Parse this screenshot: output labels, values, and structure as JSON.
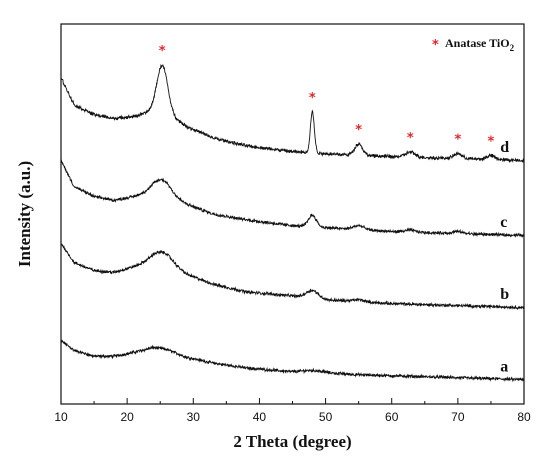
{
  "chart_data": {
    "type": "line",
    "xlabel": "2 Theta (degree)",
    "ylabel": "Intensity (a.u.)",
    "xlim": [
      10,
      80
    ],
    "x_ticks": [
      10,
      20,
      30,
      40,
      50,
      60,
      70,
      80
    ],
    "x_tick_labels": [
      "10",
      "20",
      "30",
      "40",
      "50",
      "60",
      "70",
      "80"
    ],
    "y_ticks_shown": false,
    "grid": false,
    "legend": {
      "marker": "*",
      "marker_color": "#e0262a",
      "text": "Anatase TiO",
      "subscript": "2",
      "placement": "top-right"
    },
    "marker_symbol": "*",
    "marker_color": "#e0262a",
    "anatase_peaks": [
      25.3,
      48.0,
      55.0,
      62.8,
      70.0,
      75.0
    ],
    "series": [
      {
        "name": "a",
        "color": "#111111",
        "baseline": [
          [
            10,
            0.4
          ],
          [
            12,
            0.3
          ],
          [
            15,
            0.24
          ],
          [
            18,
            0.24
          ],
          [
            21,
            0.28
          ],
          [
            24,
            0.33
          ],
          [
            26,
            0.31
          ],
          [
            29,
            0.23
          ],
          [
            33,
            0.17
          ],
          [
            38,
            0.12
          ],
          [
            45,
            0.08
          ],
          [
            50,
            0.07
          ],
          [
            55,
            0.05
          ],
          [
            60,
            0.04
          ],
          [
            65,
            0.03
          ],
          [
            70,
            0.02
          ],
          [
            75,
            0.01
          ],
          [
            80,
            0.0
          ]
        ],
        "peaks": [
          [
            48.0,
            0.02,
            1.5
          ]
        ],
        "noise": 0.012
      },
      {
        "name": "b",
        "color": "#111111",
        "baseline": [
          [
            10,
            1.4
          ],
          [
            12,
            1.2
          ],
          [
            15,
            1.12
          ],
          [
            18,
            1.1
          ],
          [
            21,
            1.16
          ],
          [
            24,
            1.22
          ],
          [
            26,
            1.2
          ],
          [
            29,
            1.08
          ],
          [
            33,
            0.98
          ],
          [
            38,
            0.9
          ],
          [
            45,
            0.86
          ],
          [
            50,
            0.82
          ],
          [
            55,
            0.8
          ],
          [
            60,
            0.78
          ],
          [
            65,
            0.77
          ],
          [
            70,
            0.76
          ],
          [
            75,
            0.75
          ],
          [
            80,
            0.74
          ]
        ],
        "peaks": [
          [
            25.3,
            0.1,
            1.5
          ],
          [
            48.0,
            0.08,
            0.9
          ],
          [
            55.0,
            0.02,
            0.9
          ]
        ],
        "noise": 0.012
      },
      {
        "name": "c",
        "color": "#111111",
        "baseline": [
          [
            10,
            2.25
          ],
          [
            12,
            1.98
          ],
          [
            15,
            1.88
          ],
          [
            18,
            1.84
          ],
          [
            21,
            1.88
          ],
          [
            24,
            1.95
          ],
          [
            26,
            1.92
          ],
          [
            29,
            1.8
          ],
          [
            33,
            1.7
          ],
          [
            38,
            1.64
          ],
          [
            45,
            1.58
          ],
          [
            50,
            1.56
          ],
          [
            55,
            1.54
          ],
          [
            60,
            1.52
          ],
          [
            65,
            1.51
          ],
          [
            70,
            1.5
          ],
          [
            75,
            1.49
          ],
          [
            80,
            1.48
          ]
        ],
        "peaks": [
          [
            25.3,
            0.12,
            1.2
          ],
          [
            48.0,
            0.12,
            0.6
          ],
          [
            55.0,
            0.04,
            0.8
          ],
          [
            62.8,
            0.02,
            0.8
          ],
          [
            70.0,
            0.02,
            0.7
          ]
        ],
        "noise": 0.012
      },
      {
        "name": "d",
        "color": "#111111",
        "baseline": [
          [
            10,
            3.1
          ],
          [
            12,
            2.82
          ],
          [
            15,
            2.72
          ],
          [
            18,
            2.68
          ],
          [
            21,
            2.7
          ],
          [
            24,
            2.76
          ],
          [
            26,
            2.74
          ],
          [
            29,
            2.6
          ],
          [
            33,
            2.48
          ],
          [
            38,
            2.4
          ],
          [
            45,
            2.34
          ],
          [
            50,
            2.32
          ],
          [
            55,
            2.3
          ],
          [
            60,
            2.29
          ],
          [
            65,
            2.28
          ],
          [
            70,
            2.27
          ],
          [
            75,
            2.26
          ],
          [
            80,
            2.25
          ]
        ],
        "peaks": [
          [
            25.3,
            0.48,
            0.8
          ],
          [
            48.0,
            0.42,
            0.3
          ],
          [
            55.0,
            0.12,
            0.6
          ],
          [
            62.8,
            0.05,
            0.7
          ],
          [
            70.0,
            0.05,
            0.6
          ],
          [
            75.0,
            0.04,
            0.6
          ]
        ],
        "noise": 0.014
      }
    ]
  }
}
